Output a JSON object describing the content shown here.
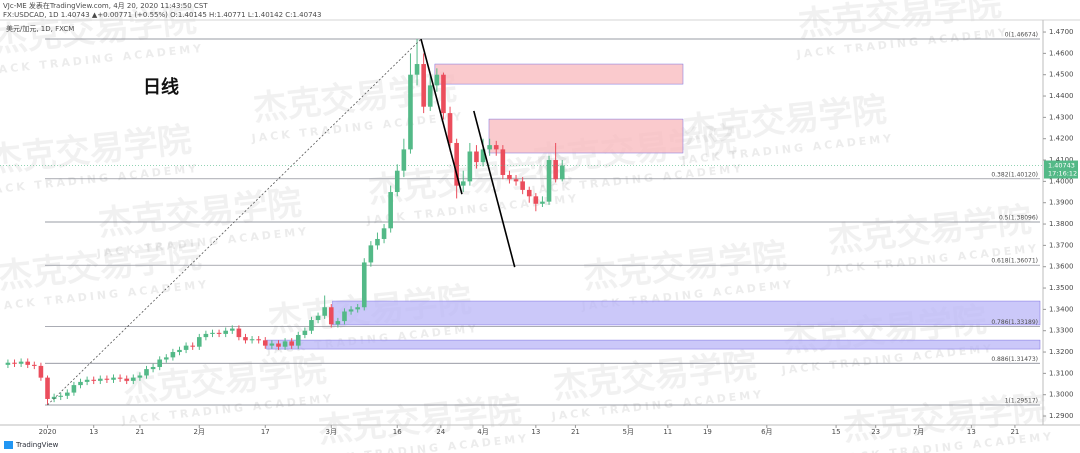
{
  "header": {
    "publisher": "VJc-ME 发表在TradingView.com, 4月 20, 2020 11:43:50 CST",
    "symbol_line": "FX:USDCAD, 1D  1.40743 ▲+0.00771 (+0.55%) O:1.40145 H:1.40771 L:1.40142 C:1.40743",
    "instrument": "美元/加元, 1D, FXCM"
  },
  "annotation": "日线",
  "watermark": {
    "cn": "杰克交易学院",
    "en": "JACK TRADING ACADEMY"
  },
  "footer": "TradingView",
  "chart_data": {
    "type": "candlestick",
    "up_color": "#53b987",
    "down_color": "#eb4d5c",
    "grid": false,
    "xlim": [
      -1.2,
      156.4
    ],
    "ylim": [
      1.2858,
      1.4733
    ],
    "xticks": [
      {
        "value": 6,
        "label": "2020"
      },
      {
        "value": 13,
        "label": "13"
      },
      {
        "value": 20,
        "label": "21"
      },
      {
        "value": 29,
        "label": "2月"
      },
      {
        "value": 39,
        "label": "17"
      },
      {
        "value": 49,
        "label": "3月"
      },
      {
        "value": 59,
        "label": "16"
      },
      {
        "value": 65.6,
        "label": "24"
      },
      {
        "value": 72,
        "label": "4月"
      },
      {
        "value": 80,
        "label": "13"
      },
      {
        "value": 86,
        "label": "21"
      },
      {
        "value": 94,
        "label": "5月"
      },
      {
        "value": 100,
        "label": "11"
      },
      {
        "value": 106,
        "label": "19"
      },
      {
        "value": 115,
        "label": "6月"
      },
      {
        "value": 125.5,
        "label": "15"
      },
      {
        "value": 131.5,
        "label": "23"
      },
      {
        "value": 138,
        "label": "7月"
      },
      {
        "value": 146,
        "label": "13"
      },
      {
        "value": 152.6,
        "label": "21"
      }
    ],
    "yticks": [
      {
        "value": 1.47,
        "label": "1.4700"
      },
      {
        "value": 1.46,
        "label": "1.4600"
      },
      {
        "value": 1.45,
        "label": "1.4500"
      },
      {
        "value": 1.44,
        "label": "1.4400"
      },
      {
        "value": 1.43,
        "label": "1.4300"
      },
      {
        "value": 1.42,
        "label": "1.4200"
      },
      {
        "value": 1.41,
        "label": "1.4100"
      },
      {
        "value": 1.4,
        "label": "1.4000"
      },
      {
        "value": 1.39,
        "label": "1.3900"
      },
      {
        "value": 1.38,
        "label": "1.3800"
      },
      {
        "value": 1.37,
        "label": "1.3700"
      },
      {
        "value": 1.36,
        "label": "1.3600"
      },
      {
        "value": 1.35,
        "label": "1.3500"
      },
      {
        "value": 1.34,
        "label": "1.3400"
      },
      {
        "value": 1.33,
        "label": "1.3300"
      },
      {
        "value": 1.32,
        "label": "1.3200"
      },
      {
        "value": 1.31,
        "label": "1.3100"
      },
      {
        "value": 1.3,
        "label": "1.3000"
      },
      {
        "value": 1.29,
        "label": "1.2900"
      }
    ],
    "open": [
      1.314,
      1.315,
      1.3145,
      1.3155,
      1.314,
      1.3135,
      1.308,
      1.298,
      1.299,
      1.2995,
      1.301,
      1.3045,
      1.306,
      1.307,
      1.3065,
      1.3075,
      1.307,
      1.308,
      1.3075,
      1.3065,
      1.308,
      1.309,
      1.312,
      1.313,
      1.3165,
      1.3175,
      1.32,
      1.321,
      1.323,
      1.3225,
      1.327,
      1.3285,
      1.329,
      1.3285,
      1.33,
      1.331,
      1.327,
      1.3255,
      1.326,
      1.3255,
      1.323,
      1.324,
      1.3225,
      1.325,
      1.323,
      1.328,
      1.33,
      1.335,
      1.337,
      1.341,
      1.333,
      1.3345,
      1.339,
      1.34,
      1.341,
      1.362,
      1.37,
      1.373,
      1.378,
      1.395,
      1.405,
      1.415,
      1.45,
      1.455,
      1.435,
      1.445,
      1.45,
      1.432,
      1.418,
      1.398,
      1.4,
      1.414,
      1.409,
      1.415,
      1.417,
      1.415,
      1.403,
      1.401,
      1.4,
      1.396,
      1.393,
      1.3895,
      1.3905,
      1.41,
      1.401
    ],
    "high": [
      1.3165,
      1.3165,
      1.317,
      1.317,
      1.3155,
      1.315,
      1.309,
      1.3005,
      1.301,
      1.3025,
      1.306,
      1.3075,
      1.3085,
      1.3085,
      1.309,
      1.309,
      1.3095,
      1.3095,
      1.309,
      1.3095,
      1.3105,
      1.3135,
      1.3145,
      1.318,
      1.319,
      1.3215,
      1.3225,
      1.3245,
      1.3245,
      1.3285,
      1.33,
      1.3305,
      1.3305,
      1.3315,
      1.3325,
      1.3325,
      1.3285,
      1.3275,
      1.3275,
      1.327,
      1.3255,
      1.3255,
      1.3265,
      1.3265,
      1.3295,
      1.3315,
      1.3365,
      1.3385,
      1.3465,
      1.3425,
      1.336,
      1.3405,
      1.3415,
      1.3425,
      1.364,
      1.372,
      1.376,
      1.38,
      1.398,
      1.408,
      1.42,
      1.46,
      1.4667,
      1.46,
      1.45,
      1.453,
      1.451,
      1.435,
      1.42,
      1.405,
      1.418,
      1.417,
      1.42,
      1.42,
      1.419,
      1.417,
      1.405,
      1.403,
      1.402,
      1.3975,
      1.3945,
      1.393,
      1.412,
      1.418,
      1.41
    ],
    "low": [
      1.3125,
      1.313,
      1.313,
      1.3125,
      1.312,
      1.3065,
      1.2952,
      1.2965,
      1.2975,
      1.298,
      1.2995,
      1.303,
      1.3045,
      1.305,
      1.305,
      1.3055,
      1.3055,
      1.306,
      1.305,
      1.305,
      1.3065,
      1.3075,
      1.3105,
      1.3115,
      1.315,
      1.316,
      1.3185,
      1.3195,
      1.321,
      1.321,
      1.3255,
      1.327,
      1.327,
      1.327,
      1.3285,
      1.3255,
      1.324,
      1.324,
      1.324,
      1.3215,
      1.3215,
      1.321,
      1.321,
      1.3215,
      1.3215,
      1.3265,
      1.3285,
      1.3335,
      1.3355,
      1.3315,
      1.3315,
      1.333,
      1.3375,
      1.3385,
      1.3395,
      1.36,
      1.368,
      1.371,
      1.376,
      1.393,
      1.402,
      1.413,
      1.445,
      1.432,
      1.433,
      1.442,
      1.429,
      1.414,
      1.392,
      1.395,
      1.398,
      1.406,
      1.407,
      1.412,
      1.412,
      1.401,
      1.399,
      1.398,
      1.394,
      1.39,
      1.386,
      1.388,
      1.389,
      1.3995,
      1.4
    ],
    "close": [
      1.315,
      1.3145,
      1.3155,
      1.314,
      1.3135,
      1.308,
      1.298,
      1.299,
      1.2995,
      1.301,
      1.3045,
      1.306,
      1.307,
      1.3065,
      1.3075,
      1.307,
      1.308,
      1.3075,
      1.3065,
      1.308,
      1.309,
      1.312,
      1.313,
      1.3165,
      1.3175,
      1.32,
      1.321,
      1.323,
      1.3225,
      1.327,
      1.3285,
      1.329,
      1.3285,
      1.33,
      1.331,
      1.327,
      1.3255,
      1.326,
      1.3255,
      1.323,
      1.324,
      1.3225,
      1.325,
      1.323,
      1.328,
      1.33,
      1.335,
      1.337,
      1.341,
      1.333,
      1.3345,
      1.339,
      1.34,
      1.341,
      1.362,
      1.37,
      1.373,
      1.378,
      1.395,
      1.405,
      1.415,
      1.45,
      1.455,
      1.435,
      1.445,
      1.45,
      1.432,
      1.418,
      1.398,
      1.4,
      1.414,
      1.409,
      1.415,
      1.417,
      1.415,
      1.403,
      1.401,
      1.4,
      1.396,
      1.393,
      1.3895,
      1.3905,
      1.41,
      1.401,
      1.4074
    ],
    "fib_levels": [
      {
        "label": "0(1.46674)",
        "price": 1.46674
      },
      {
        "label": "0.382(1.40120)",
        "price": 1.4012
      },
      {
        "label": "0.5(1.38096)",
        "price": 1.38096
      },
      {
        "label": "0.618(1.36071)",
        "price": 1.36071
      },
      {
        "label": "0.786(1.33189)",
        "price": 1.33189
      },
      {
        "label": "0.886(1.31473)",
        "price": 1.31473
      },
      {
        "label": "1(1.29517)",
        "price": 1.29517
      }
    ],
    "zones": [
      {
        "color": "#f8b8bc",
        "x": [
          64.7,
          102.3
        ],
        "price": [
          1.455,
          1.4456
        ]
      },
      {
        "color": "#f8b8bc",
        "x": [
          72.9,
          102.3
        ],
        "price": [
          1.4292,
          1.4133
        ]
      },
      {
        "color": "#b9b6f7",
        "x": [
          49.2,
          156.4
        ],
        "price": [
          1.3439,
          1.3327
        ]
      },
      {
        "color": "#b9b6f7",
        "x": [
          39.2,
          156.4
        ],
        "price": [
          1.3256,
          1.3214
        ]
      }
    ],
    "trendlines": [
      {
        "style": "dashed",
        "x": [
          6,
          62.6
        ],
        "price": [
          1.2952,
          1.4667
        ]
      },
      {
        "style": "solid",
        "x": [
          62.6,
          68.8
        ],
        "price": [
          1.4667,
          1.394
        ]
      },
      {
        "style": "solid",
        "x": [
          70.6,
          76.8
        ],
        "price": [
          1.433,
          1.3598
        ]
      }
    ],
    "last_price": {
      "value": 1.40743,
      "label": "1.40743",
      "countdown": "17:16:12"
    }
  }
}
